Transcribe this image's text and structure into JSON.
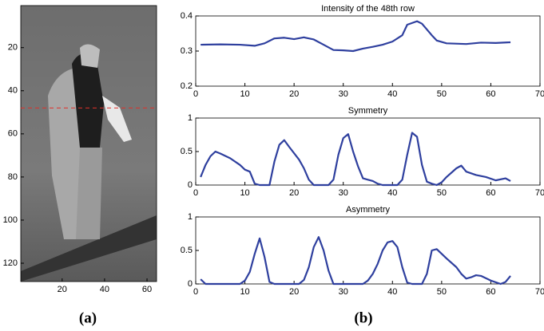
{
  "chart_data": [
    {
      "type": "image",
      "caption": "(a)",
      "xlim": [
        0.5,
        64.5
      ],
      "ylim": [
        0.5,
        128.5
      ],
      "xticks": [
        20,
        40,
        60
      ],
      "yticks": [
        20,
        40,
        60,
        80,
        100,
        120
      ],
      "marked_row": 48,
      "marked_row_color": "#e0302a"
    },
    {
      "type": "line",
      "caption": "(b)",
      "title": "Intensity of the 48th row",
      "x": [
        1,
        5,
        9,
        12,
        14,
        16,
        18,
        20,
        22,
        24,
        26,
        28,
        30,
        32,
        34,
        36,
        38,
        40,
        42,
        43,
        45,
        46,
        48,
        49,
        51,
        55,
        58,
        61,
        64
      ],
      "values": [
        0.318,
        0.319,
        0.318,
        0.315,
        0.322,
        0.336,
        0.338,
        0.334,
        0.339,
        0.333,
        0.318,
        0.303,
        0.302,
        0.3,
        0.307,
        0.312,
        0.318,
        0.327,
        0.345,
        0.375,
        0.385,
        0.378,
        0.345,
        0.33,
        0.322,
        0.32,
        0.324,
        0.323,
        0.325
      ],
      "color": "#2e3f9e",
      "xlim": [
        0,
        70
      ],
      "ylim": [
        0.2,
        0.4
      ],
      "xticks": [
        0,
        10,
        20,
        30,
        40,
        50,
        60,
        70
      ],
      "yticks": [
        0.2,
        0.3,
        0.4
      ]
    },
    {
      "type": "line",
      "title": "Symmetry",
      "x": [
        1,
        2,
        3,
        4,
        5,
        7,
        9,
        10,
        11,
        12,
        13,
        15,
        16,
        17,
        18,
        19,
        21,
        22,
        23,
        24,
        27,
        28,
        29,
        30,
        31,
        32,
        33,
        34,
        35,
        36,
        37,
        38,
        41,
        42,
        43,
        44,
        45,
        46,
        47,
        48,
        49,
        50,
        51,
        53,
        54,
        55,
        57,
        59,
        61,
        63,
        64
      ],
      "values": [
        0.12,
        0.3,
        0.43,
        0.5,
        0.47,
        0.4,
        0.3,
        0.23,
        0.2,
        0.02,
        0,
        0,
        0.35,
        0.6,
        0.67,
        0.57,
        0.38,
        0.25,
        0.08,
        0,
        0,
        0.08,
        0.45,
        0.7,
        0.76,
        0.5,
        0.28,
        0.1,
        0.08,
        0.06,
        0.02,
        0,
        0,
        0.08,
        0.45,
        0.78,
        0.72,
        0.3,
        0.05,
        0.02,
        0,
        0.04,
        0.12,
        0.25,
        0.29,
        0.2,
        0.15,
        0.12,
        0.07,
        0.1,
        0.06
      ],
      "color": "#2e3f9e",
      "xlim": [
        0,
        70
      ],
      "ylim": [
        0,
        1
      ],
      "xticks": [
        0,
        10,
        20,
        30,
        40,
        50,
        60,
        70
      ],
      "yticks": [
        0,
        0.5,
        1
      ]
    },
    {
      "type": "line",
      "title": "Asymmetry",
      "x": [
        1,
        2,
        9,
        10,
        11,
        12,
        13,
        14,
        15,
        16,
        21,
        22,
        23,
        24,
        25,
        26,
        27,
        28,
        34,
        35,
        36,
        37,
        38,
        39,
        40,
        41,
        42,
        43,
        44,
        46,
        47,
        48,
        49,
        51,
        53,
        54,
        55,
        56,
        57,
        58,
        60,
        62,
        63,
        64
      ],
      "values": [
        0.07,
        0,
        0,
        0.05,
        0.18,
        0.45,
        0.68,
        0.4,
        0.03,
        0,
        0,
        0.06,
        0.25,
        0.55,
        0.7,
        0.5,
        0.2,
        0,
        0,
        0.05,
        0.15,
        0.3,
        0.5,
        0.62,
        0.64,
        0.55,
        0.25,
        0.02,
        0,
        0,
        0.15,
        0.5,
        0.52,
        0.38,
        0.25,
        0.15,
        0.08,
        0.1,
        0.13,
        0.12,
        0.05,
        0,
        0.03,
        0.12
      ],
      "color": "#2e3f9e",
      "xlim": [
        0,
        70
      ],
      "ylim": [
        0,
        1
      ],
      "xticks": [
        0,
        10,
        20,
        30,
        40,
        50,
        60,
        70
      ],
      "yticks": [
        0,
        0.5,
        1
      ]
    }
  ]
}
